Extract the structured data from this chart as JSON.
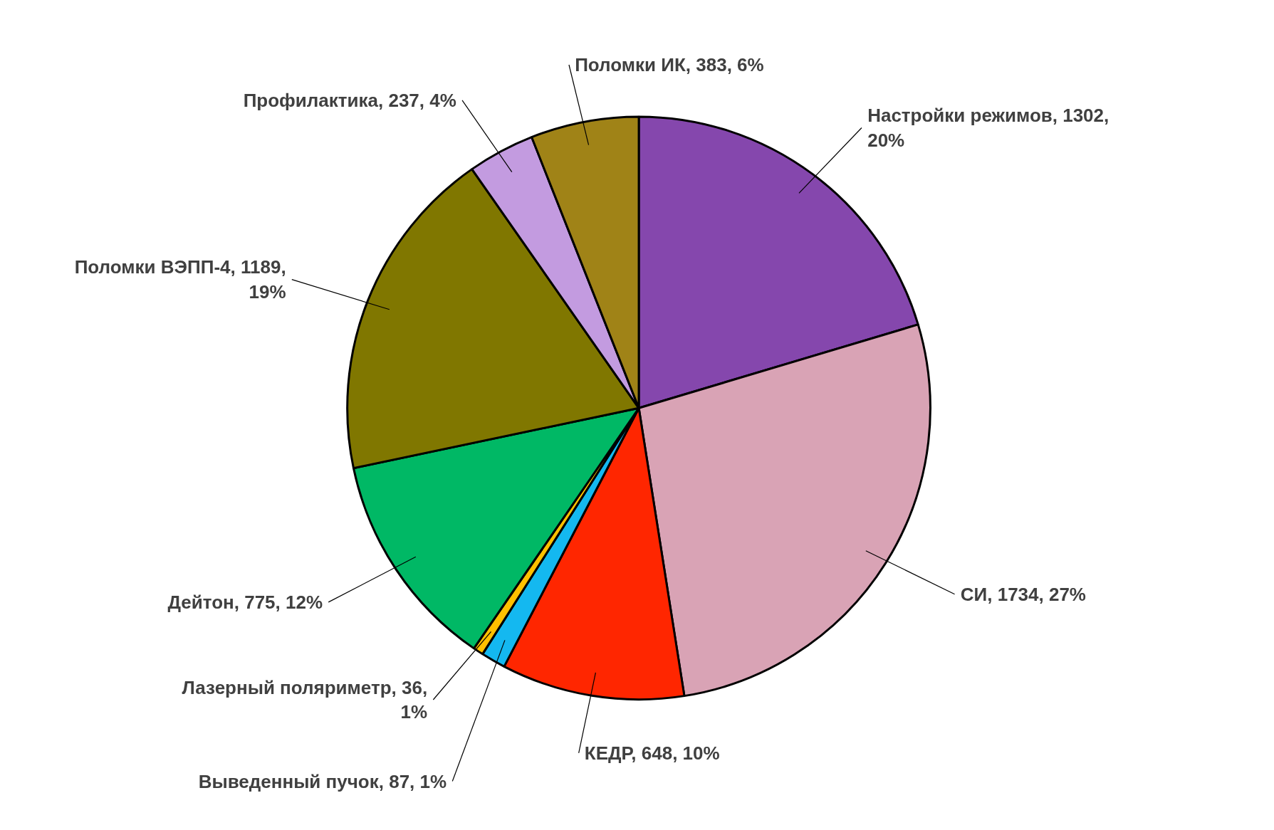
{
  "chart_data": {
    "type": "pie",
    "categories": [
      "Настройки режимов",
      "СИ",
      "КЕДР",
      "Выведенный пучок",
      "Лазерный поляриметр",
      "Дейтон",
      "Поломки ВЭПП-4",
      "Профилактика",
      "Поломки ИК"
    ],
    "values": [
      1302,
      1734,
      648,
      87,
      36,
      775,
      1189,
      237,
      383
    ],
    "value_labels": [
      "1302, 20%",
      "1734, 27%",
      "648, 10%",
      "87, 1%",
      "36, 1%",
      "775, 12%",
      "1189, 19%",
      "237, 4%",
      "383, 6%"
    ],
    "colors": [
      "#8547ad",
      "#d9a3b5",
      "#ff2600",
      "#14b8f0",
      "#ffc000",
      "#00b865",
      "#807700",
      "#c39be0",
      "#a08317"
    ],
    "data_labels": true
  }
}
